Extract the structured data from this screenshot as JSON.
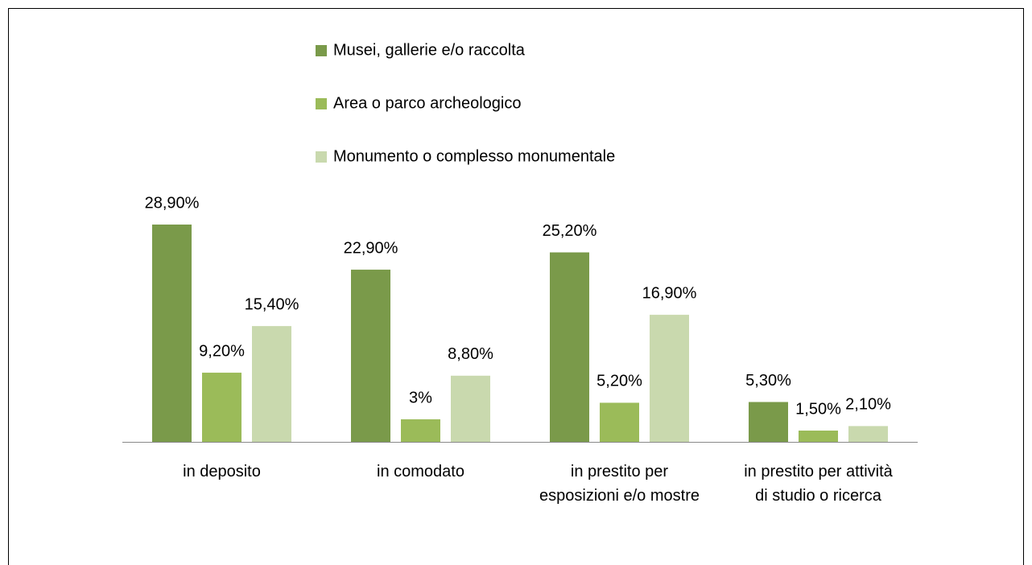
{
  "chart_data": {
    "type": "bar",
    "categories": [
      "in deposito",
      "in comodato",
      "in prestito per\nesposizioni e/o mostre",
      "in prestito per attività\ndi studio o ricerca"
    ],
    "series": [
      {
        "name": "Musei, gallerie e/o raccolta",
        "color": "#7a9a4a",
        "values": [
          28.9,
          22.9,
          25.2,
          5.3
        ],
        "value_labels": [
          "28,90%",
          "22,90%",
          "25,20%",
          "5,30%"
        ]
      },
      {
        "name": "Area o parco archeologico",
        "color": "#9bbb59",
        "values": [
          9.2,
          3,
          5.2,
          1.5
        ],
        "value_labels": [
          "9,20%",
          "3%",
          "5,20%",
          "1,50%"
        ]
      },
      {
        "name": "Monumento o complesso monumentale",
        "color": "#c9d9ae",
        "values": [
          15.4,
          8.8,
          16.9,
          2.1
        ],
        "value_labels": [
          "15,40%",
          "8,80%",
          "16,90%",
          "2,10%"
        ]
      }
    ],
    "legend": "top"
  }
}
